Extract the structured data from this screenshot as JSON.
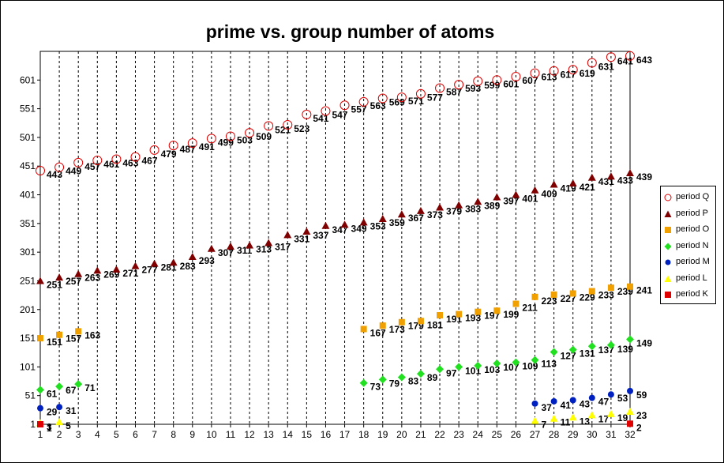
{
  "chart_data": {
    "type": "scatter",
    "title": "prime vs. group number of atoms",
    "xlabel": "",
    "ylabel": "",
    "xlim": [
      1,
      32
    ],
    "ylim": [
      1,
      651
    ],
    "xticks": [
      1,
      2,
      3,
      4,
      5,
      6,
      7,
      8,
      9,
      10,
      11,
      12,
      13,
      14,
      15,
      16,
      17,
      18,
      19,
      20,
      21,
      22,
      23,
      24,
      25,
      26,
      27,
      28,
      29,
      30,
      31,
      32
    ],
    "yticks": [
      1,
      51,
      101,
      151,
      201,
      251,
      301,
      351,
      401,
      451,
      501,
      551,
      601
    ],
    "grid": "vertical-dashed",
    "legend_position": "right",
    "series": [
      {
        "name": "period Q",
        "marker": "circle-open",
        "color": "#e00000",
        "points": [
          [
            1,
            443
          ],
          [
            2,
            449
          ],
          [
            3,
            457
          ],
          [
            4,
            461
          ],
          [
            5,
            463
          ],
          [
            6,
            467
          ],
          [
            7,
            479
          ],
          [
            8,
            487
          ],
          [
            9,
            491
          ],
          [
            10,
            499
          ],
          [
            11,
            503
          ],
          [
            12,
            509
          ],
          [
            13,
            521
          ],
          [
            14,
            523
          ],
          [
            15,
            541
          ],
          [
            16,
            547
          ],
          [
            17,
            557
          ],
          [
            18,
            563
          ],
          [
            19,
            569
          ],
          [
            20,
            571
          ],
          [
            21,
            577
          ],
          [
            22,
            587
          ],
          [
            23,
            593
          ],
          [
            24,
            599
          ],
          [
            25,
            601
          ],
          [
            26,
            607
          ],
          [
            27,
            613
          ],
          [
            28,
            617
          ],
          [
            29,
            619
          ],
          [
            30,
            631
          ],
          [
            31,
            641
          ],
          [
            32,
            643
          ]
        ]
      },
      {
        "name": "period P",
        "marker": "triangle",
        "color": "#800000",
        "points": [
          [
            1,
            251
          ],
          [
            2,
            257
          ],
          [
            3,
            263
          ],
          [
            4,
            269
          ],
          [
            5,
            271
          ],
          [
            6,
            277
          ],
          [
            7,
            281
          ],
          [
            8,
            283
          ],
          [
            9,
            293
          ],
          [
            10,
            307
          ],
          [
            11,
            311
          ],
          [
            12,
            313
          ],
          [
            13,
            317
          ],
          [
            14,
            331
          ],
          [
            15,
            337
          ],
          [
            16,
            347
          ],
          [
            17,
            349
          ],
          [
            18,
            353
          ],
          [
            19,
            359
          ],
          [
            20,
            367
          ],
          [
            21,
            373
          ],
          [
            22,
            379
          ],
          [
            23,
            383
          ],
          [
            24,
            389
          ],
          [
            25,
            397
          ],
          [
            26,
            401
          ],
          [
            27,
            409
          ],
          [
            28,
            419
          ],
          [
            29,
            421
          ],
          [
            30,
            431
          ],
          [
            31,
            433
          ],
          [
            32,
            439
          ]
        ]
      },
      {
        "name": "period O",
        "marker": "square",
        "color": "#f0a000",
        "points": [
          [
            1,
            151
          ],
          [
            2,
            157
          ],
          [
            3,
            163
          ],
          [
            18,
            167
          ],
          [
            19,
            173
          ],
          [
            20,
            179
          ],
          [
            21,
            181
          ],
          [
            22,
            191
          ],
          [
            23,
            193
          ],
          [
            24,
            197
          ],
          [
            25,
            199
          ],
          [
            26,
            211
          ],
          [
            27,
            223
          ],
          [
            28,
            227
          ],
          [
            29,
            229
          ],
          [
            30,
            233
          ],
          [
            31,
            239
          ],
          [
            32,
            241
          ]
        ]
      },
      {
        "name": "period N",
        "marker": "diamond",
        "color": "#20e020",
        "points": [
          [
            1,
            61
          ],
          [
            2,
            67
          ],
          [
            3,
            71
          ],
          [
            18,
            73
          ],
          [
            19,
            79
          ],
          [
            20,
            83
          ],
          [
            21,
            89
          ],
          [
            22,
            97
          ],
          [
            23,
            101
          ],
          [
            24,
            103
          ],
          [
            25,
            107
          ],
          [
            26,
            109
          ],
          [
            27,
            113
          ],
          [
            28,
            127
          ],
          [
            29,
            131
          ],
          [
            30,
            137
          ],
          [
            31,
            139
          ],
          [
            32,
            149
          ]
        ]
      },
      {
        "name": "period M",
        "marker": "circle",
        "color": "#0020c0",
        "points": [
          [
            1,
            29
          ],
          [
            2,
            31
          ],
          [
            27,
            37
          ],
          [
            28,
            41
          ],
          [
            29,
            43
          ],
          [
            30,
            47
          ],
          [
            31,
            53
          ],
          [
            32,
            59
          ]
        ]
      },
      {
        "name": "period L",
        "marker": "triangle",
        "color": "#ffff00",
        "points": [
          [
            1,
            3
          ],
          [
            2,
            5
          ],
          [
            27,
            7
          ],
          [
            28,
            11
          ],
          [
            29,
            13
          ],
          [
            30,
            17
          ],
          [
            31,
            19
          ],
          [
            32,
            23
          ]
        ]
      },
      {
        "name": "period K",
        "marker": "square",
        "color": "#e00000",
        "points": [
          [
            1,
            1
          ],
          [
            32,
            2
          ]
        ]
      }
    ]
  }
}
